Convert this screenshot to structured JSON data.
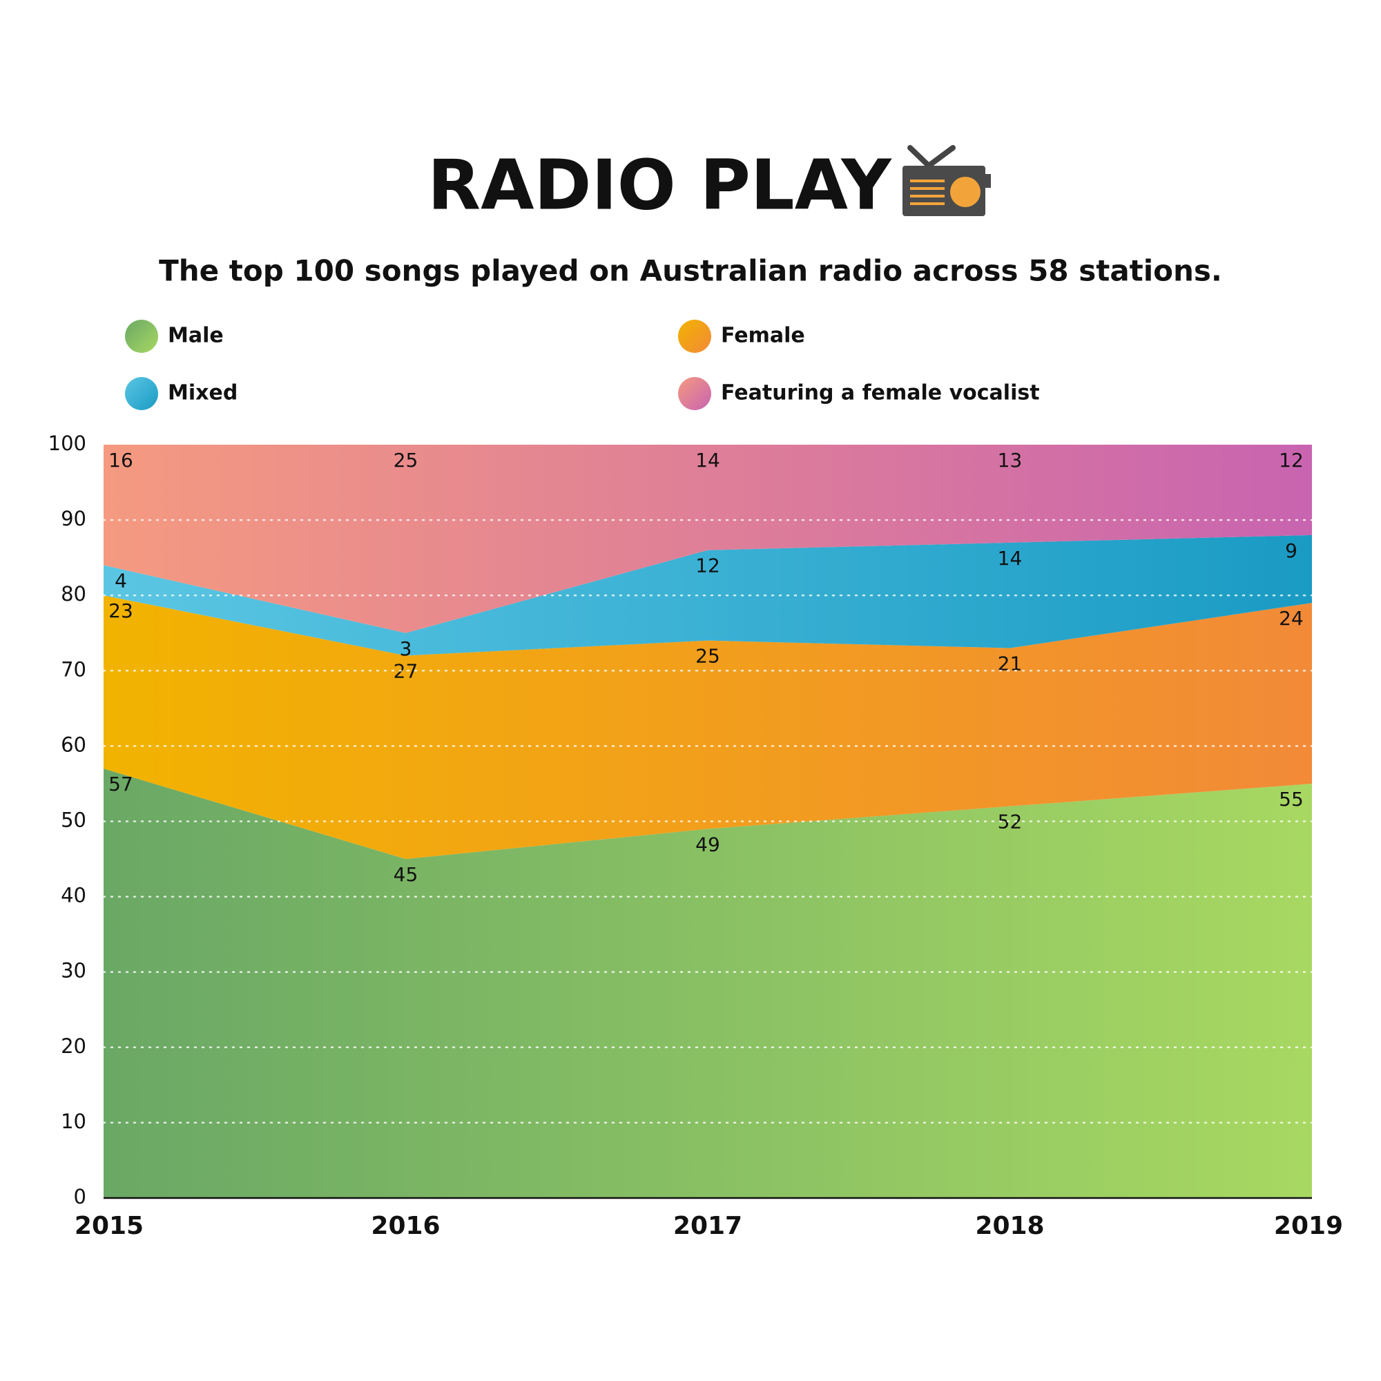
{
  "chart_data": {
    "type": "stacked-area",
    "title": "RADIO PLAY",
    "subtitle": "The top 100 songs played on Australian radio across 58 stations.",
    "categories": [
      "2015",
      "2016",
      "2017",
      "2018",
      "2019"
    ],
    "series": [
      {
        "name": "Male",
        "colors": [
          "#6aa865",
          "#a8d862"
        ],
        "values": [
          57,
          45,
          49,
          52,
          55
        ]
      },
      {
        "name": "Female",
        "colors": [
          "#f2b300",
          "#f28a38"
        ],
        "values": [
          23,
          27,
          25,
          21,
          24
        ]
      },
      {
        "name": "Mixed",
        "colors": [
          "#5bc6e3",
          "#1a9bc4"
        ],
        "values": [
          4,
          3,
          12,
          14,
          9
        ]
      },
      {
        "name": "Featuring a female vocalist",
        "colors": [
          "#f59a80",
          "#c864b0"
        ],
        "values": [
          16,
          25,
          14,
          13,
          12
        ]
      }
    ],
    "ylim": [
      0,
      100
    ],
    "yticks": [
      0,
      10,
      20,
      30,
      40,
      50,
      60,
      70,
      80,
      90,
      100
    ],
    "grid": true,
    "legend": "top"
  }
}
